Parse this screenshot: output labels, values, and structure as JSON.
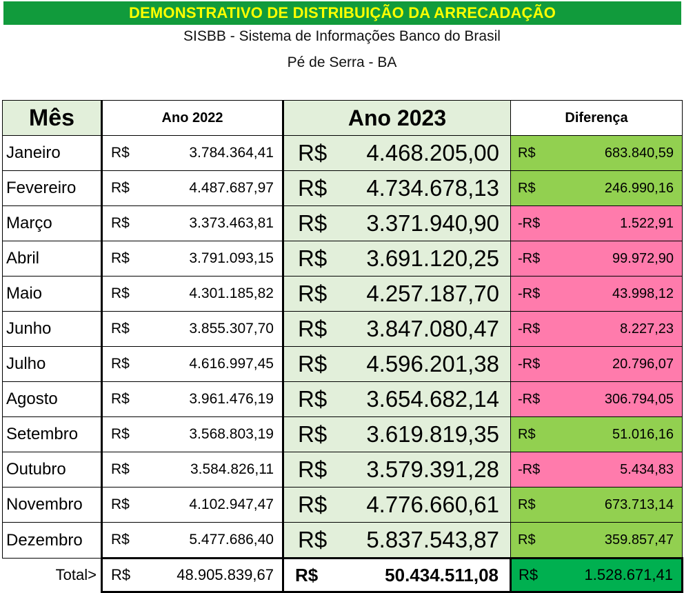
{
  "header": {
    "banner": "DEMONSTRATIVO DE DISTRIBUIÇÃO DA ARRECADAÇÃO",
    "subtitle1": "SISBB - Sistema de Informações Banco do Brasil",
    "subtitle2": "Pé de Serra - BA"
  },
  "columns": {
    "mes": "Mês",
    "ano2022": "Ano 2022",
    "ano2023": "Ano 2023",
    "diferenca": "Diferença"
  },
  "currency": "R$",
  "negative_currency": "-R$",
  "rows": [
    {
      "mes": "Janeiro",
      "v2022": "3.784.364,41",
      "v2023": "4.468.205,00",
      "dif": "683.840,59",
      "dif_sign": "+"
    },
    {
      "mes": "Fevereiro",
      "v2022": "4.487.687,97",
      "v2023": "4.734.678,13",
      "dif": "246.990,16",
      "dif_sign": "+"
    },
    {
      "mes": "Março",
      "v2022": "3.373.463,81",
      "v2023": "3.371.940,90",
      "dif": "1.522,91",
      "dif_sign": "-"
    },
    {
      "mes": "Abril",
      "v2022": "3.791.093,15",
      "v2023": "3.691.120,25",
      "dif": "99.972,90",
      "dif_sign": "-"
    },
    {
      "mes": "Maio",
      "v2022": "4.301.185,82",
      "v2023": "4.257.187,70",
      "dif": "43.998,12",
      "dif_sign": "-"
    },
    {
      "mes": "Junho",
      "v2022": "3.855.307,70",
      "v2023": "3.847.080,47",
      "dif": "8.227,23",
      "dif_sign": "-"
    },
    {
      "mes": "Julho",
      "v2022": "4.616.997,45",
      "v2023": "4.596.201,38",
      "dif": "20.796,07",
      "dif_sign": "-"
    },
    {
      "mes": "Agosto",
      "v2022": "3.961.476,19",
      "v2023": "3.654.682,14",
      "dif": "306.794,05",
      "dif_sign": "-"
    },
    {
      "mes": "Setembro",
      "v2022": "3.568.803,19",
      "v2023": "3.619.819,35",
      "dif": "51.016,16",
      "dif_sign": "+"
    },
    {
      "mes": "Outubro",
      "v2022": "3.584.826,11",
      "v2023": "3.579.391,28",
      "dif": "5.434,83",
      "dif_sign": "-"
    },
    {
      "mes": "Novembro",
      "v2022": "4.102.947,47",
      "v2023": "4.776.660,61",
      "dif": "673.713,14",
      "dif_sign": "+"
    },
    {
      "mes": "Dezembro",
      "v2022": "5.477.686,40",
      "v2023": "5.837.543,87",
      "dif": "359.857,47",
      "dif_sign": "+"
    }
  ],
  "total": {
    "label": "Total>",
    "v2022": "48.905.839,67",
    "v2023": "50.434.511,08",
    "dif": "1.528.671,41"
  },
  "colors": {
    "banner_bg": "#119b3c",
    "banner_text": "#ffff00",
    "year2023_bg": "#e2efda",
    "positive_bg": "#92d050",
    "negative_bg": "#ff7bac",
    "total_dif_bg": "#00b050"
  }
}
